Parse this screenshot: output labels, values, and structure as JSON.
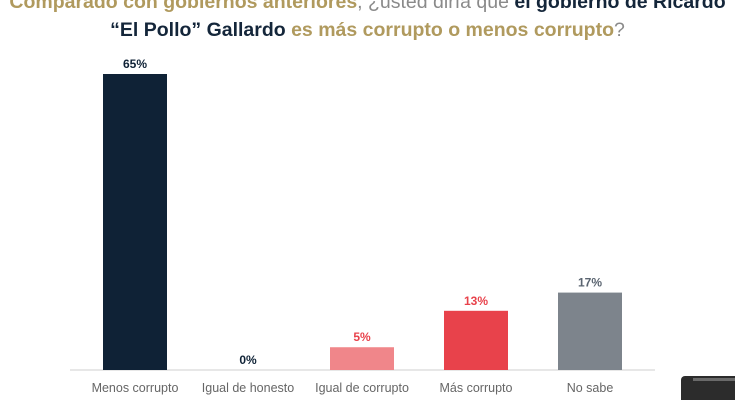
{
  "title": {
    "part1": "Comparado con gobiernos anteriores",
    "part2": ", ¿usted diría que ",
    "part3": "el gobierno de Ricardo",
    "part4": "“El Pollo” Gallardo",
    "part5": " es más corrupto o menos corrupto",
    "part6": "?"
  },
  "chart_data": {
    "type": "bar",
    "categories": [
      "Menos corrupto",
      "Igual de honesto",
      "Igual de corrupto",
      "Más corrupto",
      "No sabe"
    ],
    "values": [
      65,
      0,
      5,
      13,
      17
    ],
    "value_labels": [
      "65%",
      "0%",
      "5%",
      "13%",
      "17%"
    ],
    "bar_colors": [
      "#0f2236",
      "#0f2236",
      "#f0868a",
      "#e8424b",
      "#7d848c"
    ],
    "label_colors": [
      "#0f2236",
      "#0f2236",
      "#e8424b",
      "#e8424b",
      "#5a6470"
    ],
    "ylim": [
      0,
      65
    ],
    "grid": false,
    "legend": "none"
  },
  "colors": {
    "gold": "#b09a5e",
    "navy": "#14263a",
    "gray_text": "#8a8a8a",
    "axis": "#cfcfcf",
    "category_text": "#666666"
  }
}
